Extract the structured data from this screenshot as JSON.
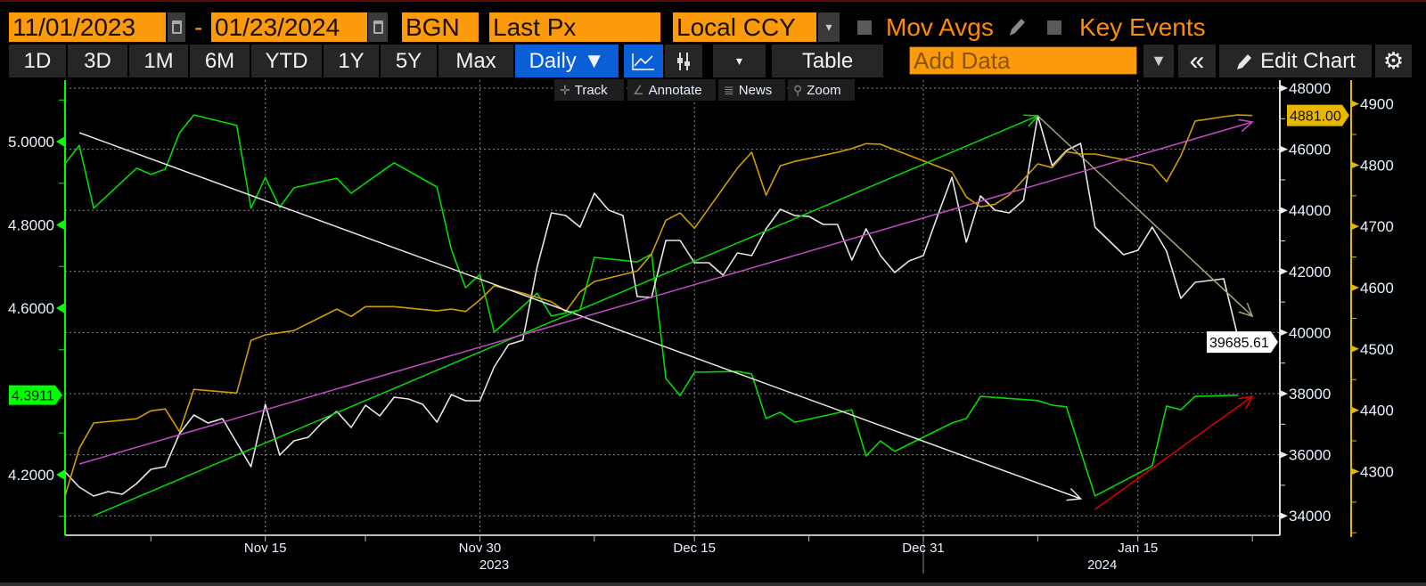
{
  "toolbar": {
    "start_date": "11/01/2023",
    "end_date": "01/23/2024",
    "date_separator": "-",
    "source": "BGN",
    "field": "Last Px",
    "currency": "Local CCY",
    "mov_avgs": "Mov Avgs",
    "key_events": "Key Events"
  },
  "range_buttons": [
    "1D",
    "3D",
    "1M",
    "6M",
    "YTD",
    "1Y",
    "5Y",
    "Max"
  ],
  "frequency": {
    "label": "Daily",
    "arrow": "▼"
  },
  "view": {
    "dropdown_arrow": "▾",
    "table": "Table",
    "add_data_placeholder": "Add Data",
    "filter_icon": "▼",
    "collapse_icon": "«",
    "edit_chart": "Edit Chart",
    "gear_icon": "⚙"
  },
  "chart_tools": [
    "Track",
    "Annotate",
    "News",
    "Zoom"
  ],
  "colors": {
    "orange": "#fb9a0a",
    "accent_blue": "#0a5fd6",
    "green": "#00dd00",
    "white": "#e6e6e6",
    "gold": "#d09e00",
    "magenta": "#c44bc4",
    "olive": "#a9a377",
    "red": "#e00000"
  },
  "chart_data": {
    "type": "line",
    "title": "",
    "x_axis": {
      "start_date": "2023-11-01",
      "unit": "days since start",
      "range": [
        0,
        83
      ],
      "ticks": [
        {
          "day": 14,
          "label": "Nov 15"
        },
        {
          "day": 29,
          "label": "Nov 30"
        },
        {
          "day": 44,
          "label": "Dec 15"
        },
        {
          "day": 60,
          "label": "Dec 31"
        },
        {
          "day": 75,
          "label": "Jan 15"
        }
      ],
      "minor_ticks": [
        6,
        21,
        37,
        52,
        68,
        83
      ],
      "year_labels": [
        {
          "day": 30,
          "label": "2023"
        },
        {
          "day": 72.5,
          "label": "2024"
        }
      ],
      "year_divider_day": 60
    },
    "axes": {
      "left": {
        "range": [
          4.07,
          5.13
        ],
        "ticks": [
          {
            "value": 5.0,
            "label": "5.0000"
          },
          {
            "value": 4.8,
            "label": "4.8000"
          },
          {
            "value": 4.6,
            "label": "4.6000"
          },
          {
            "value": 4.2,
            "label": "4.2000"
          }
        ],
        "minor": [
          5.1,
          4.9,
          4.7,
          4.5,
          4.3,
          4.1
        ],
        "last_value": 4.3911,
        "last_label": "4.3911"
      },
      "middle": {
        "range": [
          33400,
          48300
        ],
        "ticks": [
          {
            "value": 48000,
            "label": "48000"
          },
          {
            "value": 46000,
            "label": "46000"
          },
          {
            "value": 44000,
            "label": "44000"
          },
          {
            "value": 42000,
            "label": "42000"
          },
          {
            "value": 40000,
            "label": "40000"
          },
          {
            "value": 38000,
            "label": "38000"
          },
          {
            "value": 36000,
            "label": "36000"
          },
          {
            "value": 34000,
            "label": "34000"
          }
        ],
        "minor": [
          47000,
          45000,
          43000,
          41000,
          39000,
          37000,
          35000
        ],
        "last_value": 39685.61,
        "last_label": "39685.61"
      },
      "right": {
        "range": [
          4200,
          4940
        ],
        "ticks": [
          {
            "value": 4900,
            "label": "4900"
          },
          {
            "value": 4800,
            "label": "4800"
          },
          {
            "value": 4700,
            "label": "4700"
          },
          {
            "value": 4600,
            "label": "4600"
          },
          {
            "value": 4500,
            "label": "4500"
          },
          {
            "value": 4400,
            "label": "4400"
          },
          {
            "value": 4300,
            "label": "4300"
          }
        ],
        "minor": [
          4850,
          4750,
          4650,
          4550,
          4450,
          4350,
          4250,
          4200
        ],
        "last_value": 4881.0,
        "last_label": "4881.00"
      }
    },
    "grid": true,
    "series": [
      {
        "id": "green-series",
        "axis": "left",
        "color": "#00dd00",
        "points": [
          [
            0,
            4.947
          ],
          [
            1,
            4.991
          ],
          [
            2,
            4.84
          ],
          [
            5,
            4.936
          ],
          [
            6,
            4.921
          ],
          [
            7,
            4.934
          ],
          [
            8,
            5.021
          ],
          [
            9,
            5.064
          ],
          [
            12,
            5.039
          ],
          [
            13,
            4.84
          ],
          [
            14,
            4.914
          ],
          [
            15,
            4.842
          ],
          [
            16,
            4.889
          ],
          [
            19,
            4.912
          ],
          [
            20,
            4.876
          ],
          [
            23,
            4.949
          ],
          [
            26,
            4.891
          ],
          [
            27,
            4.741
          ],
          [
            28,
            4.649
          ],
          [
            29,
            4.681
          ],
          [
            30,
            4.542
          ],
          [
            33,
            4.636
          ],
          [
            34,
            4.581
          ],
          [
            36,
            4.596
          ],
          [
            37,
            4.722
          ],
          [
            40,
            4.711
          ],
          [
            41,
            4.73
          ],
          [
            42,
            4.431
          ],
          [
            43,
            4.39
          ],
          [
            44,
            4.446
          ],
          [
            47,
            4.448
          ],
          [
            48,
            4.442
          ],
          [
            49,
            4.335
          ],
          [
            50,
            4.35
          ],
          [
            51,
            4.326
          ],
          [
            55,
            4.356
          ],
          [
            56,
            4.245
          ],
          [
            57,
            4.281
          ],
          [
            58,
            4.256
          ],
          [
            62,
            4.324
          ],
          [
            63,
            4.335
          ],
          [
            64,
            4.388
          ],
          [
            68,
            4.378
          ],
          [
            69,
            4.367
          ],
          [
            70,
            4.363
          ],
          [
            72,
            4.149
          ],
          [
            76,
            4.221
          ],
          [
            77,
            4.365
          ],
          [
            78,
            4.356
          ],
          [
            79,
            4.388
          ],
          [
            82,
            4.3911
          ]
        ]
      },
      {
        "id": "white-series",
        "axis": "middle",
        "color": "#e6e6e6",
        "points": [
          [
            0,
            35434
          ],
          [
            1,
            34939
          ],
          [
            2,
            34647
          ],
          [
            3,
            34793
          ],
          [
            4,
            34705
          ],
          [
            5,
            35055
          ],
          [
            6,
            35522
          ],
          [
            7,
            35609
          ],
          [
            8,
            36688
          ],
          [
            9,
            37300
          ],
          [
            10,
            37038
          ],
          [
            11,
            37184
          ],
          [
            12,
            36396
          ],
          [
            13,
            35609
          ],
          [
            14,
            37650
          ],
          [
            15,
            35988
          ],
          [
            16,
            36455
          ],
          [
            17,
            36571
          ],
          [
            18,
            37067
          ],
          [
            19,
            37417
          ],
          [
            20,
            36892
          ],
          [
            21,
            37621
          ],
          [
            22,
            37271
          ],
          [
            23,
            37883
          ],
          [
            24,
            37825
          ],
          [
            25,
            37650
          ],
          [
            26,
            37067
          ],
          [
            27,
            37971
          ],
          [
            28,
            37767
          ],
          [
            29,
            37767
          ],
          [
            30,
            38875
          ],
          [
            31,
            39603
          ],
          [
            32,
            39749
          ],
          [
            33,
            42140
          ],
          [
            34,
            43918
          ],
          [
            35,
            43831
          ],
          [
            36,
            43452
          ],
          [
            37,
            44560
          ],
          [
            38,
            44006
          ],
          [
            39,
            43831
          ],
          [
            40,
            41178
          ],
          [
            41,
            41149
          ],
          [
            42,
            43014
          ],
          [
            43,
            43014
          ],
          [
            44,
            42286
          ],
          [
            45,
            42286
          ],
          [
            46,
            41877
          ],
          [
            47,
            42606
          ],
          [
            48,
            42519
          ],
          [
            49,
            43394
          ],
          [
            50,
            44035
          ],
          [
            51,
            43831
          ],
          [
            52,
            43802
          ],
          [
            53,
            43539
          ],
          [
            54,
            43539
          ],
          [
            55,
            42373
          ],
          [
            56,
            43394
          ],
          [
            57,
            42519
          ],
          [
            58,
            41965
          ],
          [
            59,
            42344
          ],
          [
            60,
            42519
          ],
          [
            61,
            43831
          ],
          [
            62,
            45085
          ],
          [
            63,
            42956
          ],
          [
            64,
            44472
          ],
          [
            65,
            44006
          ],
          [
            66,
            43918
          ],
          [
            67,
            44327
          ],
          [
            68,
            47096
          ],
          [
            69,
            45464
          ],
          [
            70,
            45959
          ],
          [
            71,
            46192
          ],
          [
            72,
            43452
          ],
          [
            74,
            42548
          ],
          [
            75,
            42694
          ],
          [
            76,
            43452
          ],
          [
            77,
            42665
          ],
          [
            78,
            41120
          ],
          [
            79,
            41644
          ],
          [
            81,
            41761
          ],
          [
            82,
            39837
          ],
          [
            83,
            39685.61
          ]
        ]
      },
      {
        "id": "gold-series",
        "axis": "right",
        "color": "#d09e00",
        "points": [
          [
            0,
            4260
          ],
          [
            1,
            4338
          ],
          [
            2,
            4379
          ],
          [
            5,
            4386
          ],
          [
            6,
            4399
          ],
          [
            7,
            4402
          ],
          [
            8,
            4365
          ],
          [
            9,
            4434
          ],
          [
            12,
            4428
          ],
          [
            13,
            4514
          ],
          [
            14,
            4523
          ],
          [
            16,
            4530
          ],
          [
            19,
            4565
          ],
          [
            20,
            4553
          ],
          [
            21,
            4569
          ],
          [
            23,
            4569
          ],
          [
            26,
            4562
          ],
          [
            27,
            4565
          ],
          [
            28,
            4561
          ],
          [
            29,
            4580
          ],
          [
            30,
            4603
          ],
          [
            32,
            4591
          ],
          [
            34,
            4577
          ],
          [
            35,
            4561
          ],
          [
            36,
            4593
          ],
          [
            37,
            4610
          ],
          [
            40,
            4627
          ],
          [
            41,
            4655
          ],
          [
            42,
            4710
          ],
          [
            43,
            4722
          ],
          [
            44,
            4697
          ],
          [
            47,
            4795
          ],
          [
            48,
            4821
          ],
          [
            49,
            4751
          ],
          [
            50,
            4799
          ],
          [
            51,
            4806
          ],
          [
            54,
            4821
          ],
          [
            55,
            4827
          ],
          [
            56,
            4835
          ],
          [
            57,
            4834
          ],
          [
            58,
            4825
          ],
          [
            62,
            4789
          ],
          [
            63,
            4748
          ],
          [
            64,
            4732
          ],
          [
            65,
            4736
          ],
          [
            66,
            4751
          ],
          [
            68,
            4802
          ],
          [
            69,
            4796
          ],
          [
            70,
            4822
          ],
          [
            71,
            4818
          ],
          [
            72,
            4818
          ],
          [
            76,
            4800
          ],
          [
            77,
            4773
          ],
          [
            78,
            4815
          ],
          [
            79,
            4872
          ],
          [
            81,
            4879
          ],
          [
            82,
            4882
          ],
          [
            83,
            4881
          ]
        ]
      }
    ],
    "annotations": [
      {
        "id": "white-trend-arrow",
        "axis": "middle",
        "color": "#e6e6e6",
        "from": [
          1,
          46542
        ],
        "to": [
          71,
          34560
        ]
      },
      {
        "id": "green-trend-arrow",
        "axis": "middle",
        "color": "#00dd00",
        "from": [
          2,
          34006
        ],
        "to": [
          68,
          47096
        ]
      },
      {
        "id": "magenta-trend-arrow",
        "axis": "middle",
        "color": "#c44bc4",
        "from": [
          1,
          35697
        ],
        "to": [
          83,
          46892
        ]
      },
      {
        "id": "olive-trend-arrow",
        "axis": "middle",
        "color": "#a9a377",
        "from": [
          68,
          47096
        ],
        "to": [
          83,
          40536
        ]
      },
      {
        "id": "red-trend-arrow",
        "axis": "middle",
        "color": "#e00000",
        "from": [
          72,
          34210
        ],
        "to": [
          83,
          37912
        ]
      }
    ]
  }
}
